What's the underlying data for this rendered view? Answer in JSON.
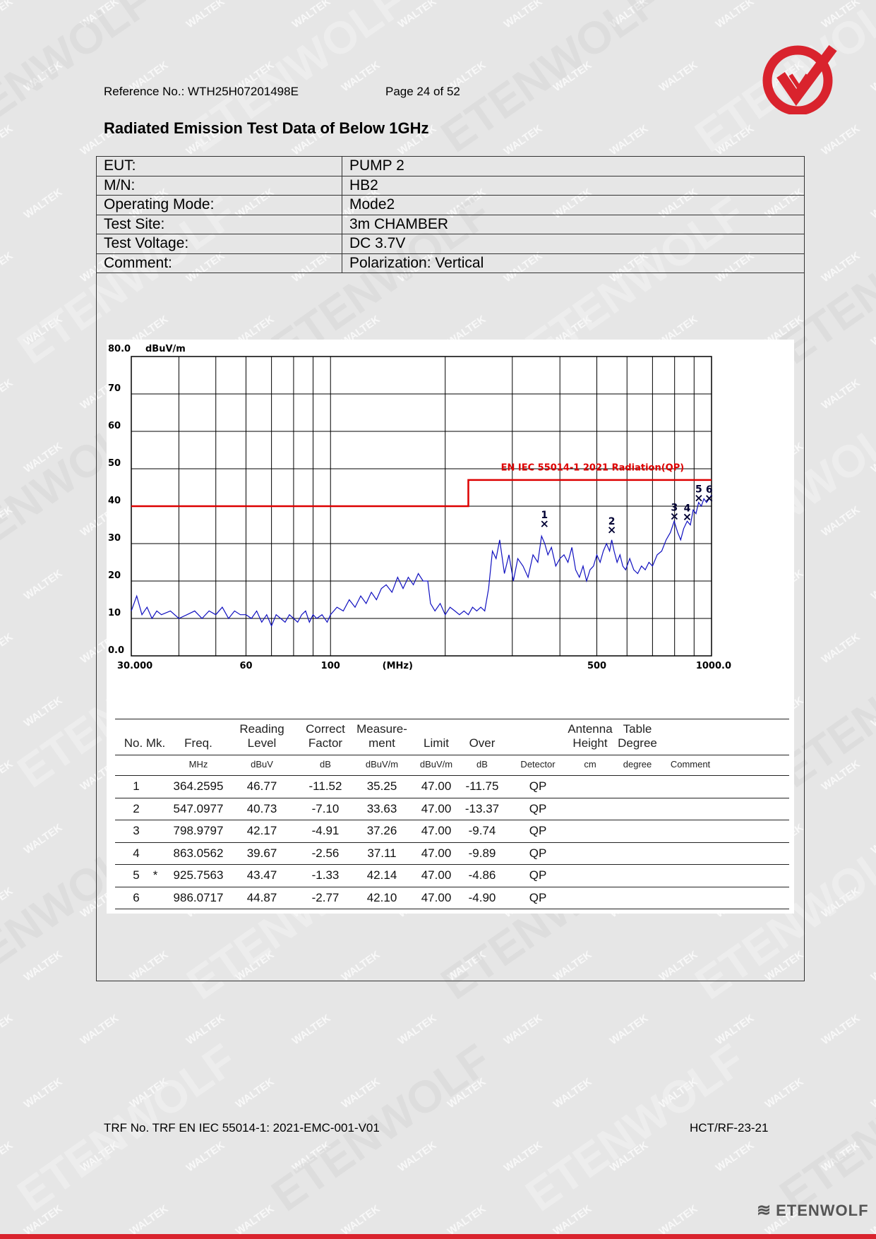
{
  "header": {
    "reference": "Reference No.: WTH25H07201498E",
    "page": "Page 24 of 52"
  },
  "title": "Radiated Emission Test Data of Below 1GHz",
  "info": [
    {
      "key": "EUT:",
      "value": "PUMP 2"
    },
    {
      "key": "M/N:",
      "value": "HB2"
    },
    {
      "key": "Operating Mode:",
      "value": "Mode2"
    },
    {
      "key": "Test Site:",
      "value": "3m CHAMBER"
    },
    {
      "key": "Test Voltage:",
      "value": "DC 3.7V"
    },
    {
      "key": "Comment:",
      "value": "Polarization: Vertical"
    }
  ],
  "chart_data": {
    "type": "line",
    "xscale": "log",
    "xlim": [
      30,
      1000
    ],
    "ylim": [
      0,
      80
    ],
    "y_unit": "dBuV/m",
    "x_unit": "(MHz)",
    "y_ticks": [
      "80.0",
      "70",
      "60",
      "50",
      "40",
      "30",
      "20",
      "10",
      "0.0"
    ],
    "x_ticks": [
      {
        "v": 30,
        "label": "30.000"
      },
      {
        "v": 60,
        "label": "60"
      },
      {
        "v": 100,
        "label": "100"
      },
      {
        "v": 500,
        "label": "500"
      },
      {
        "v": 1000,
        "label": "1000.0"
      }
    ],
    "limit_label": "EN IEC 55014-1 2021 Radiation(QP)",
    "limit_line": [
      [
        30,
        40
      ],
      [
        230,
        40
      ],
      [
        230,
        47
      ],
      [
        1000,
        47
      ]
    ],
    "limit_color": "#dd0000",
    "trace_color": "#1010c0",
    "trace": [
      [
        30,
        12
      ],
      [
        31,
        16
      ],
      [
        32,
        11
      ],
      [
        33,
        13
      ],
      [
        34,
        10
      ],
      [
        35,
        12
      ],
      [
        36,
        11
      ],
      [
        38,
        12
      ],
      [
        40,
        10
      ],
      [
        42,
        11
      ],
      [
        44,
        12
      ],
      [
        46,
        10
      ],
      [
        48,
        12
      ],
      [
        50,
        11
      ],
      [
        52,
        13
      ],
      [
        54,
        10
      ],
      [
        56,
        12
      ],
      [
        58,
        11
      ],
      [
        60,
        11
      ],
      [
        62,
        10
      ],
      [
        64,
        12
      ],
      [
        66,
        9
      ],
      [
        68,
        11
      ],
      [
        70,
        8
      ],
      [
        72,
        11
      ],
      [
        74,
        10
      ],
      [
        76,
        9
      ],
      [
        78,
        11
      ],
      [
        80,
        10
      ],
      [
        82,
        9
      ],
      [
        84,
        11
      ],
      [
        86,
        12
      ],
      [
        88,
        9
      ],
      [
        90,
        11
      ],
      [
        92,
        10
      ],
      [
        95,
        11
      ],
      [
        98,
        9
      ],
      [
        100,
        11
      ],
      [
        104,
        13
      ],
      [
        108,
        12
      ],
      [
        112,
        15
      ],
      [
        116,
        13
      ],
      [
        120,
        16
      ],
      [
        124,
        14
      ],
      [
        128,
        17
      ],
      [
        132,
        15
      ],
      [
        136,
        18
      ],
      [
        140,
        19
      ],
      [
        145,
        17
      ],
      [
        150,
        21
      ],
      [
        155,
        18
      ],
      [
        160,
        21
      ],
      [
        165,
        19
      ],
      [
        170,
        22
      ],
      [
        175,
        20
      ],
      [
        180,
        20
      ],
      [
        183,
        14
      ],
      [
        188,
        12
      ],
      [
        194,
        14
      ],
      [
        200,
        11
      ],
      [
        206,
        13
      ],
      [
        212,
        12
      ],
      [
        218,
        11
      ],
      [
        224,
        12
      ],
      [
        230,
        11
      ],
      [
        236,
        13
      ],
      [
        242,
        12
      ],
      [
        248,
        13
      ],
      [
        254,
        12
      ],
      [
        260,
        18
      ],
      [
        266,
        28
      ],
      [
        272,
        26
      ],
      [
        278,
        31
      ],
      [
        286,
        22
      ],
      [
        294,
        27
      ],
      [
        302,
        20
      ],
      [
        310,
        26
      ],
      [
        320,
        24
      ],
      [
        330,
        21
      ],
      [
        340,
        27
      ],
      [
        350,
        25
      ],
      [
        358,
        32
      ],
      [
        365,
        30
      ],
      [
        372,
        27
      ],
      [
        380,
        29
      ],
      [
        390,
        24
      ],
      [
        400,
        26
      ],
      [
        410,
        27
      ],
      [
        420,
        25
      ],
      [
        430,
        29
      ],
      [
        440,
        23
      ],
      [
        450,
        21
      ],
      [
        460,
        24
      ],
      [
        470,
        20
      ],
      [
        480,
        23
      ],
      [
        490,
        24
      ],
      [
        500,
        27
      ],
      [
        510,
        25
      ],
      [
        520,
        28
      ],
      [
        530,
        30
      ],
      [
        540,
        28
      ],
      [
        547,
        31
      ],
      [
        555,
        28
      ],
      [
        565,
        25
      ],
      [
        575,
        27
      ],
      [
        585,
        24
      ],
      [
        595,
        23
      ],
      [
        610,
        26
      ],
      [
        625,
        23
      ],
      [
        640,
        22
      ],
      [
        655,
        24
      ],
      [
        670,
        23
      ],
      [
        685,
        25
      ],
      [
        700,
        24
      ],
      [
        720,
        27
      ],
      [
        740,
        28
      ],
      [
        760,
        31
      ],
      [
        780,
        33
      ],
      [
        798,
        36
      ],
      [
        815,
        33
      ],
      [
        830,
        31
      ],
      [
        845,
        34
      ],
      [
        863,
        36
      ],
      [
        880,
        35
      ],
      [
        895,
        39
      ],
      [
        910,
        38
      ],
      [
        925,
        41
      ],
      [
        940,
        40
      ],
      [
        955,
        42
      ],
      [
        970,
        41
      ],
      [
        986,
        42
      ],
      [
        1000,
        43
      ]
    ],
    "markers": [
      {
        "n": "1",
        "x": 364.2595,
        "y": 35.25
      },
      {
        "n": "2",
        "x": 547.0977,
        "y": 33.63
      },
      {
        "n": "3",
        "x": 798.9797,
        "y": 37.26
      },
      {
        "n": "4",
        "x": 863.0562,
        "y": 37.11
      },
      {
        "n": "5",
        "x": 925.7563,
        "y": 42.14
      },
      {
        "n": "6",
        "x": 986.0717,
        "y": 42.1
      }
    ],
    "columns": [
      {
        "key": "no",
        "label1": "",
        "label2": "No. Mk.",
        "unit": ""
      },
      {
        "key": "freq",
        "label1": "",
        "label2": "Freq.",
        "unit": "MHz"
      },
      {
        "key": "reading",
        "label1": "Reading",
        "label2": "Level",
        "unit": "dBuV"
      },
      {
        "key": "factor",
        "label1": "Correct",
        "label2": "Factor",
        "unit": "dB"
      },
      {
        "key": "measure",
        "label1": "Measure-",
        "label2": "ment",
        "unit": "dBuV/m"
      },
      {
        "key": "limit",
        "label1": "",
        "label2": "Limit",
        "unit": "dBuV/m"
      },
      {
        "key": "over",
        "label1": "",
        "label2": "Over",
        "unit": "dB"
      },
      {
        "key": "detector",
        "label1": "",
        "label2": "",
        "unit": "Detector"
      },
      {
        "key": "height",
        "label1": "Antenna",
        "label2": "Height",
        "unit": "cm"
      },
      {
        "key": "degree",
        "label1": "Table",
        "label2": "Degree",
        "unit": "degree"
      },
      {
        "key": "comment",
        "label1": "",
        "label2": "",
        "unit": "Comment"
      }
    ],
    "rows": [
      {
        "no": "1",
        "mk": "",
        "freq": "364.2595",
        "reading": "46.77",
        "factor": "-11.52",
        "measure": "35.25",
        "limit": "47.00",
        "over": "-11.75",
        "detector": "QP"
      },
      {
        "no": "2",
        "mk": "",
        "freq": "547.0977",
        "reading": "40.73",
        "factor": "-7.10",
        "measure": "33.63",
        "limit": "47.00",
        "over": "-13.37",
        "detector": "QP"
      },
      {
        "no": "3",
        "mk": "",
        "freq": "798.9797",
        "reading": "42.17",
        "factor": "-4.91",
        "measure": "37.26",
        "limit": "47.00",
        "over": "-9.74",
        "detector": "QP"
      },
      {
        "no": "4",
        "mk": "",
        "freq": "863.0562",
        "reading": "39.67",
        "factor": "-2.56",
        "measure": "37.11",
        "limit": "47.00",
        "over": "-9.89",
        "detector": "QP"
      },
      {
        "no": "5",
        "mk": "*",
        "freq": "925.7563",
        "reading": "43.47",
        "factor": "-1.33",
        "measure": "42.14",
        "limit": "47.00",
        "over": "-4.86",
        "detector": "QP"
      },
      {
        "no": "6",
        "mk": "",
        "freq": "986.0717",
        "reading": "44.87",
        "factor": "-2.77",
        "measure": "42.10",
        "limit": "47.00",
        "over": "-4.90",
        "detector": "QP"
      }
    ]
  },
  "footer": {
    "trf": "TRF No. TRF EN IEC 55014-1: 2021-EMC-001-V01",
    "code": "HCT/RF-23-21",
    "brand": "ETENWOLF"
  },
  "watermark": {
    "small": "WALTEK",
    "large": "ETENWOLF"
  },
  "colors": {
    "accent": "#d9232d",
    "limit": "#dd0000",
    "trace": "#1010c0"
  }
}
